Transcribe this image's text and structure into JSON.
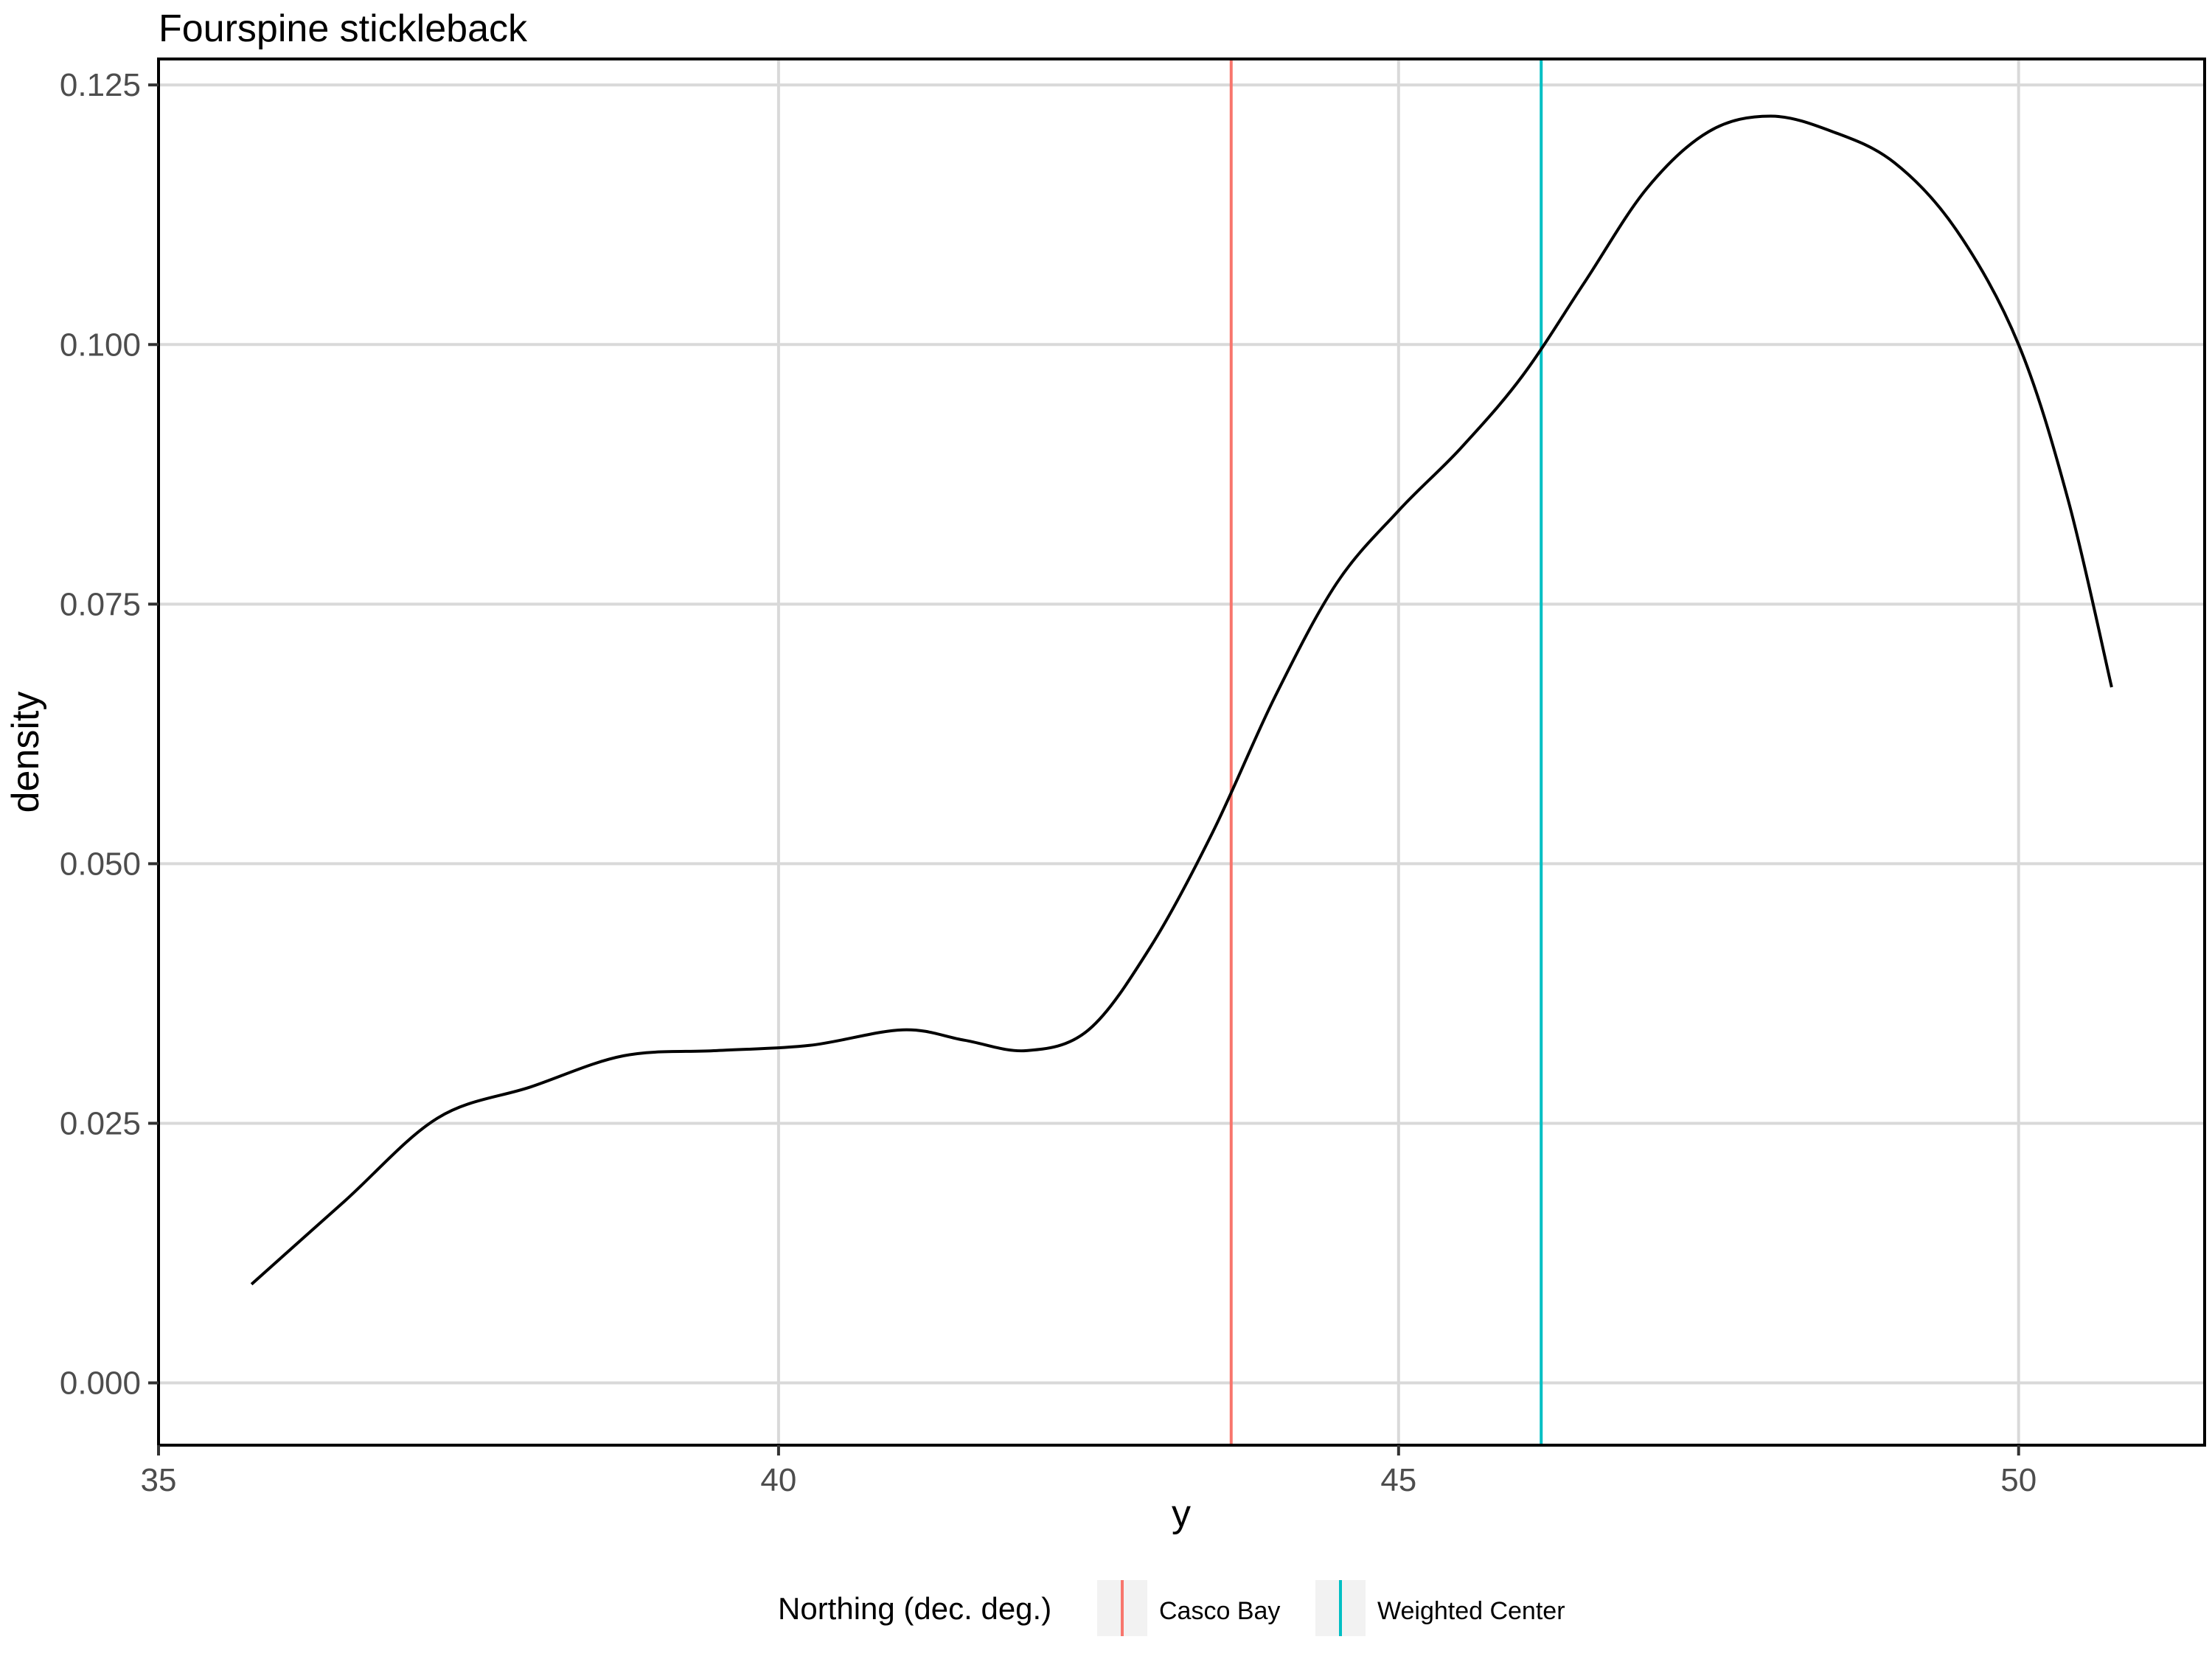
{
  "chart_data": {
    "type": "line",
    "title": "Fourspine stickleback",
    "xlabel": "y",
    "ylabel": "density",
    "xlim": [
      35,
      51.5
    ],
    "ylim": [
      -0.006,
      0.1275
    ],
    "xticks": [
      35,
      40,
      45,
      50
    ],
    "xtick_labels": [
      "35",
      "40",
      "45",
      "50"
    ],
    "yticks": [
      0,
      0.025,
      0.05,
      0.075,
      0.1,
      0.125
    ],
    "ytick_labels": [
      "0.000",
      "0.025",
      "0.050",
      "0.075",
      "0.100",
      "0.125"
    ],
    "grid": true,
    "density_curve": {
      "color": "#000000",
      "x": [
        35.75,
        36.5,
        37.25,
        38.0,
        38.75,
        39.5,
        40.25,
        41.0,
        41.5,
        42.0,
        42.5,
        43.0,
        43.5,
        44.0,
        44.5,
        45.0,
        45.5,
        46.0,
        46.5,
        47.0,
        47.5,
        48.0,
        48.5,
        49.0,
        49.5,
        50.0,
        50.4,
        50.75
      ],
      "y": [
        0.0095,
        0.0175,
        0.0255,
        0.0285,
        0.0315,
        0.032,
        0.0325,
        0.034,
        0.033,
        0.032,
        0.034,
        0.042,
        0.053,
        0.066,
        0.077,
        0.084,
        0.09,
        0.097,
        0.106,
        0.115,
        0.1205,
        0.122,
        0.1205,
        0.1175,
        0.111,
        0.1,
        0.085,
        0.067
      ]
    },
    "reference_lines": [
      {
        "name": "Casco Bay",
        "x": 43.65,
        "color": "#f8766d"
      },
      {
        "name": "Weighted Center",
        "x": 46.15,
        "color": "#00bfc4"
      }
    ],
    "legend": {
      "title": "Northing (dec. deg.)",
      "placement": "bottom",
      "entries": [
        {
          "label": "Casco Bay",
          "color": "#f8766d"
        },
        {
          "label": "Weighted Center",
          "color": "#00bfc4"
        }
      ]
    }
  }
}
